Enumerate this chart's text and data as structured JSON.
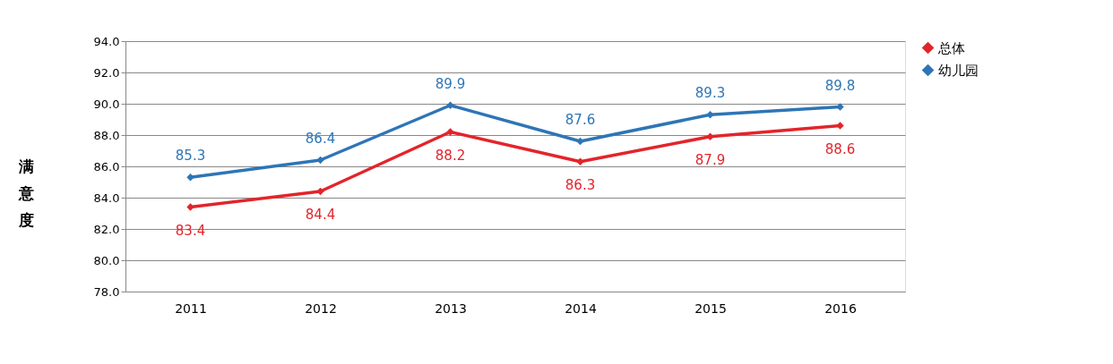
{
  "chart_data": {
    "type": "line",
    "ylabel": "满意度",
    "categories": [
      "2011",
      "2012",
      "2013",
      "2014",
      "2015",
      "2016"
    ],
    "series": [
      {
        "name": "总体",
        "color": "#e3242b",
        "values": [
          83.4,
          84.4,
          88.2,
          86.3,
          87.9,
          88.6
        ]
      },
      {
        "name": "幼儿园",
        "color": "#2e75b6",
        "values": [
          85.3,
          86.4,
          89.9,
          87.6,
          89.3,
          89.8
        ]
      }
    ],
    "ylim": [
      78,
      94
    ],
    "yticks": [
      {
        "value": 78,
        "label": "78.0"
      },
      {
        "value": 80,
        "label": "80.0"
      },
      {
        "value": 82,
        "label": "82.0"
      },
      {
        "value": 84,
        "label": "84.0"
      },
      {
        "value": 86,
        "label": "86.0"
      },
      {
        "value": 88,
        "label": "88.0"
      },
      {
        "value": 90,
        "label": "90.0"
      },
      {
        "value": 92,
        "label": "92.0"
      },
      {
        "value": 94,
        "label": "94.0"
      }
    ],
    "grid": "y",
    "legend": "right",
    "marker": "diamond",
    "line_style": "solid",
    "data_labels": true
  }
}
